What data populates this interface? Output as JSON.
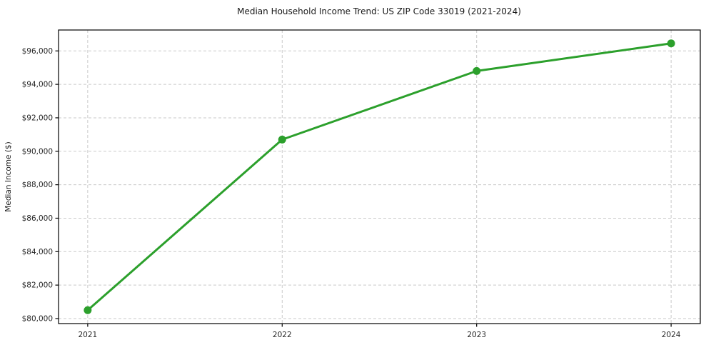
{
  "figure": {
    "kind": "matplotlib-style line chart",
    "background": "#ffffff"
  },
  "chart_data": {
    "type": "line",
    "title": "Median Household Income Trend: US ZIP Code 33019 (2021-2024)",
    "xlabel": "",
    "ylabel": "Median Income ($)",
    "x": [
      2021,
      2022,
      2023,
      2024
    ],
    "categories": [
      "2021",
      "2022",
      "2023",
      "2024"
    ],
    "series": [
      {
        "name": "Median Household Income",
        "values": [
          80500,
          90700,
          94800,
          96450
        ]
      }
    ],
    "xlim": [
      2020.85,
      2024.15
    ],
    "ylim": [
      79700,
      97250
    ],
    "yticks": [
      80000,
      82000,
      84000,
      86000,
      88000,
      90000,
      92000,
      94000,
      96000
    ],
    "ytick_labels": [
      "$80,000",
      "$82,000",
      "$84,000",
      "$86,000",
      "$88,000",
      "$90,000",
      "$92,000",
      "$94,000",
      "$96,000"
    ],
    "grid": true,
    "grid_style": "dashed",
    "grid_color": "#c9c9c9",
    "legend_position": "none",
    "line_color": "#2ca02c",
    "marker": "circle",
    "marker_radius": 5.5,
    "line_width": 3,
    "spine_color": "#000000"
  }
}
